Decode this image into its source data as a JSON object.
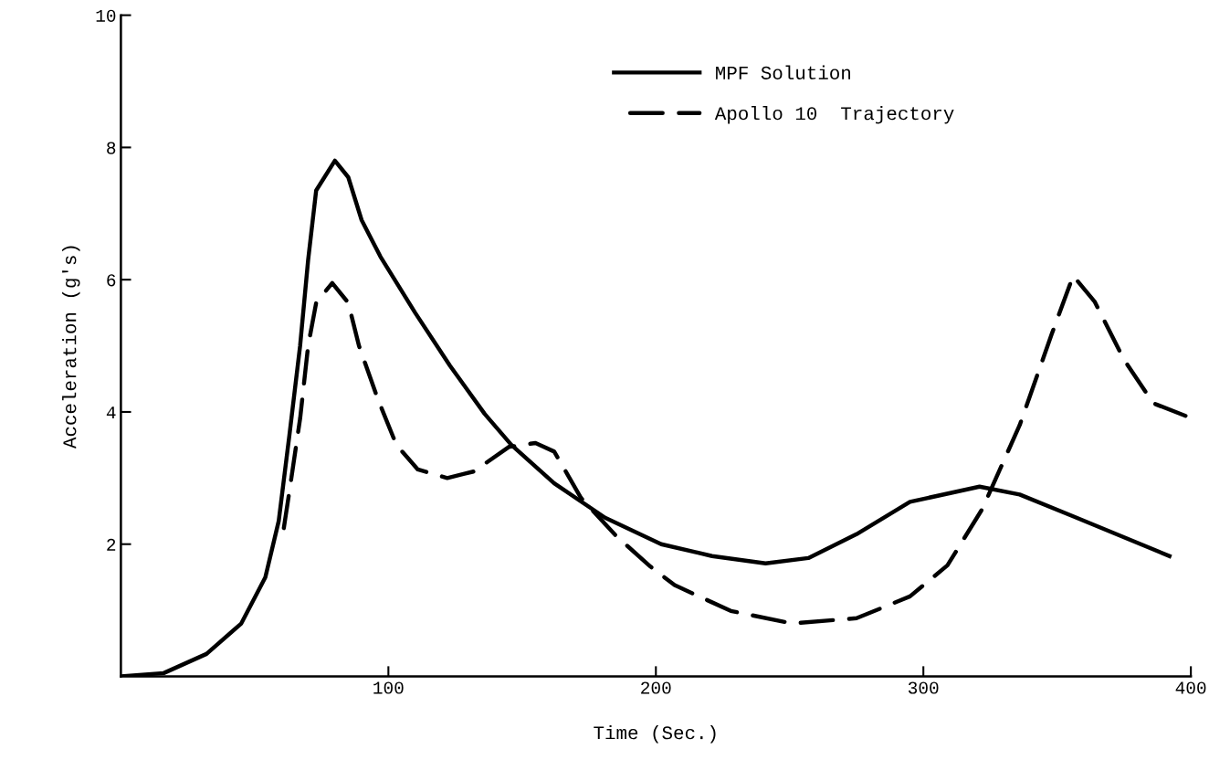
{
  "chart_data": {
    "type": "line",
    "xlabel": "Time (Sec.)",
    "ylabel": "Acceleration (g's)",
    "xlim": [
      0,
      400
    ],
    "xticks": [
      100,
      200,
      300,
      400
    ],
    "ylim": [
      0,
      10
    ],
    "yticks": [
      2,
      4,
      6,
      8,
      10
    ],
    "grid": false,
    "legend": "top",
    "marker": "none",
    "series": [
      {
        "name": "MPF Solution",
        "color": "#000000",
        "line_style": "solid",
        "x": [
          0,
          16,
          32,
          45,
          54,
          59,
          63,
          67,
          70,
          73,
          80,
          85,
          90,
          97,
          110,
          123,
          136,
          146,
          162,
          181,
          202,
          221,
          241,
          257,
          275,
          295,
          321,
          336,
          356,
          392
        ],
        "values": [
          0,
          0.05,
          0.34,
          0.8,
          1.5,
          2.35,
          3.65,
          5.0,
          6.3,
          7.35,
          7.8,
          7.55,
          6.9,
          6.35,
          5.5,
          4.7,
          3.97,
          3.5,
          2.92,
          2.4,
          2.0,
          1.82,
          1.71,
          1.79,
          2.15,
          2.64,
          2.87,
          2.75,
          2.42,
          1.82
        ]
      },
      {
        "name": "Apollo 10  Trajectory",
        "color": "#000000",
        "line_style": "dashed",
        "x": [
          60,
          63,
          67,
          70,
          73,
          79,
          85,
          89,
          96,
          103,
          111,
          122,
          132,
          145,
          155,
          162,
          172,
          185,
          198,
          207,
          228,
          251,
          275,
          295,
          309,
          322,
          336,
          348,
          356,
          364,
          375,
          386,
          398
        ],
        "values": [
          2.0,
          2.8,
          3.9,
          5.0,
          5.65,
          5.95,
          5.65,
          5.0,
          4.2,
          3.5,
          3.13,
          3.0,
          3.1,
          3.47,
          3.53,
          3.4,
          2.7,
          2.13,
          1.66,
          1.38,
          0.99,
          0.8,
          0.88,
          1.21,
          1.68,
          2.53,
          3.8,
          5.18,
          6.06,
          5.67,
          4.79,
          4.13,
          3.94
        ]
      }
    ]
  }
}
